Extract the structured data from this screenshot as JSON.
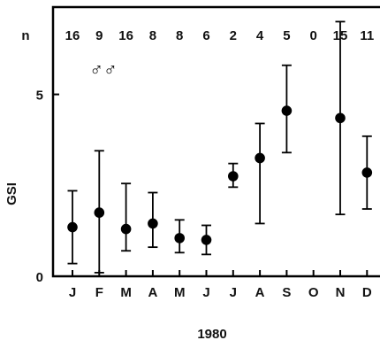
{
  "chart_data": {
    "type": "scatter",
    "title": "",
    "xlabel": "1980",
    "ylabel": "GSI",
    "categories": [
      "J",
      "F",
      "M",
      "A",
      "M",
      "J",
      "J",
      "A",
      "S",
      "O",
      "N",
      "D"
    ],
    "n_label": "n",
    "n_values": [
      "16",
      "9",
      "16",
      "8",
      "8",
      "6",
      "2",
      "4",
      "5",
      "0",
      "15",
      "11"
    ],
    "symbol": "♂♂",
    "ylim": [
      0,
      7.4
    ],
    "yticks": [
      {
        "value": 0,
        "label": "0"
      },
      {
        "value": 5,
        "label": "5"
      }
    ],
    "points": [
      {
        "month": "J",
        "mean": 1.35,
        "low": 0.35,
        "high": 2.35
      },
      {
        "month": "F",
        "mean": 1.75,
        "low": 0.1,
        "high": 3.45
      },
      {
        "month": "M",
        "mean": 1.3,
        "low": 0.7,
        "high": 2.55
      },
      {
        "month": "A",
        "mean": 1.45,
        "low": 0.8,
        "high": 2.3
      },
      {
        "month": "M",
        "mean": 1.05,
        "low": 0.65,
        "high": 1.55
      },
      {
        "month": "J",
        "mean": 1.0,
        "low": 0.6,
        "high": 1.4
      },
      {
        "month": "J",
        "mean": 2.75,
        "low": 2.45,
        "high": 3.1
      },
      {
        "month": "A",
        "mean": 3.25,
        "low": 1.45,
        "high": 4.2
      },
      {
        "month": "S",
        "mean": 4.55,
        "low": 3.4,
        "high": 5.8
      },
      {
        "month": "O",
        "mean": null,
        "low": null,
        "high": null
      },
      {
        "month": "N",
        "mean": 4.35,
        "low": 1.7,
        "high": 7.0
      },
      {
        "month": "D",
        "mean": 2.85,
        "low": 1.85,
        "high": 3.85
      }
    ],
    "grid": false
  }
}
